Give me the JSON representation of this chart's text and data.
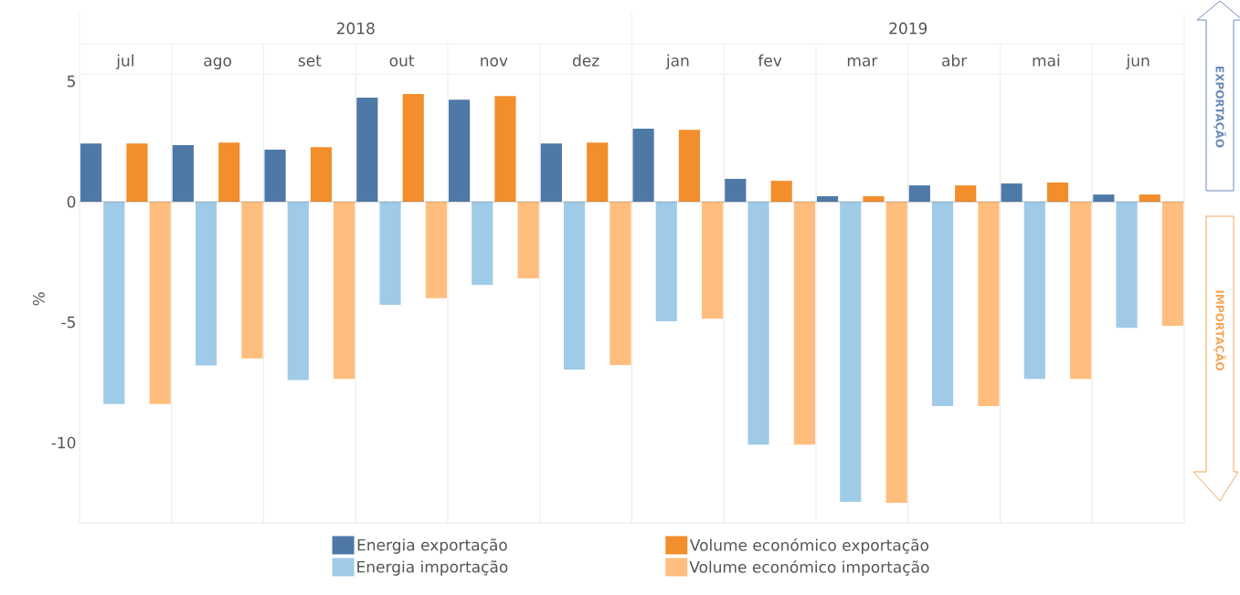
{
  "chart_data": {
    "type": "bar",
    "ylabel": "%",
    "categories": [
      "jul",
      "ago",
      "set",
      "out",
      "nov",
      "dez",
      "jan",
      "fev",
      "mar",
      "abr",
      "mai",
      "jun"
    ],
    "series": [
      {
        "name": "Energia exportação",
        "color": "#4e79a7",
        "values": [
          2.42,
          2.35,
          2.16,
          4.32,
          4.24,
          2.42,
          3.03,
          0.95,
          0.23,
          0.68,
          0.76,
          0.3
        ]
      },
      {
        "name": "Energia importação",
        "color": "#a0cbe8",
        "values": [
          -8.4,
          -6.8,
          -7.4,
          -4.28,
          -3.45,
          -6.97,
          -4.96,
          -10.08,
          -12.46,
          -8.48,
          -7.35,
          -5.23
        ]
      },
      {
        "name": "Volume económico exportação",
        "color": "#f28e2b",
        "values": [
          2.42,
          2.46,
          2.27,
          4.47,
          4.39,
          2.46,
          2.99,
          0.87,
          0.23,
          0.68,
          0.8,
          0.3
        ]
      },
      {
        "name": "Volume económico importação",
        "color": "#ffbe7d",
        "values": [
          -8.4,
          -6.5,
          -7.35,
          -4.0,
          -3.18,
          -6.78,
          -4.85,
          -10.08,
          -12.5,
          -8.48,
          -7.35,
          -5.15
        ]
      }
    ],
    "ylim": [
      -13.33,
      5.27
    ],
    "yticks": [
      -10,
      -5,
      0,
      5
    ],
    "grid": "x",
    "legend": "bottom",
    "ref_lines": [
      {
        "axis": "y",
        "value": 0,
        "color": "#555555",
        "line_style": "dotted"
      }
    ],
    "annotations": [
      "2018",
      "2019",
      "EXPORTAÇÃO",
      "IMPORTAÇÃO"
    ]
  }
}
